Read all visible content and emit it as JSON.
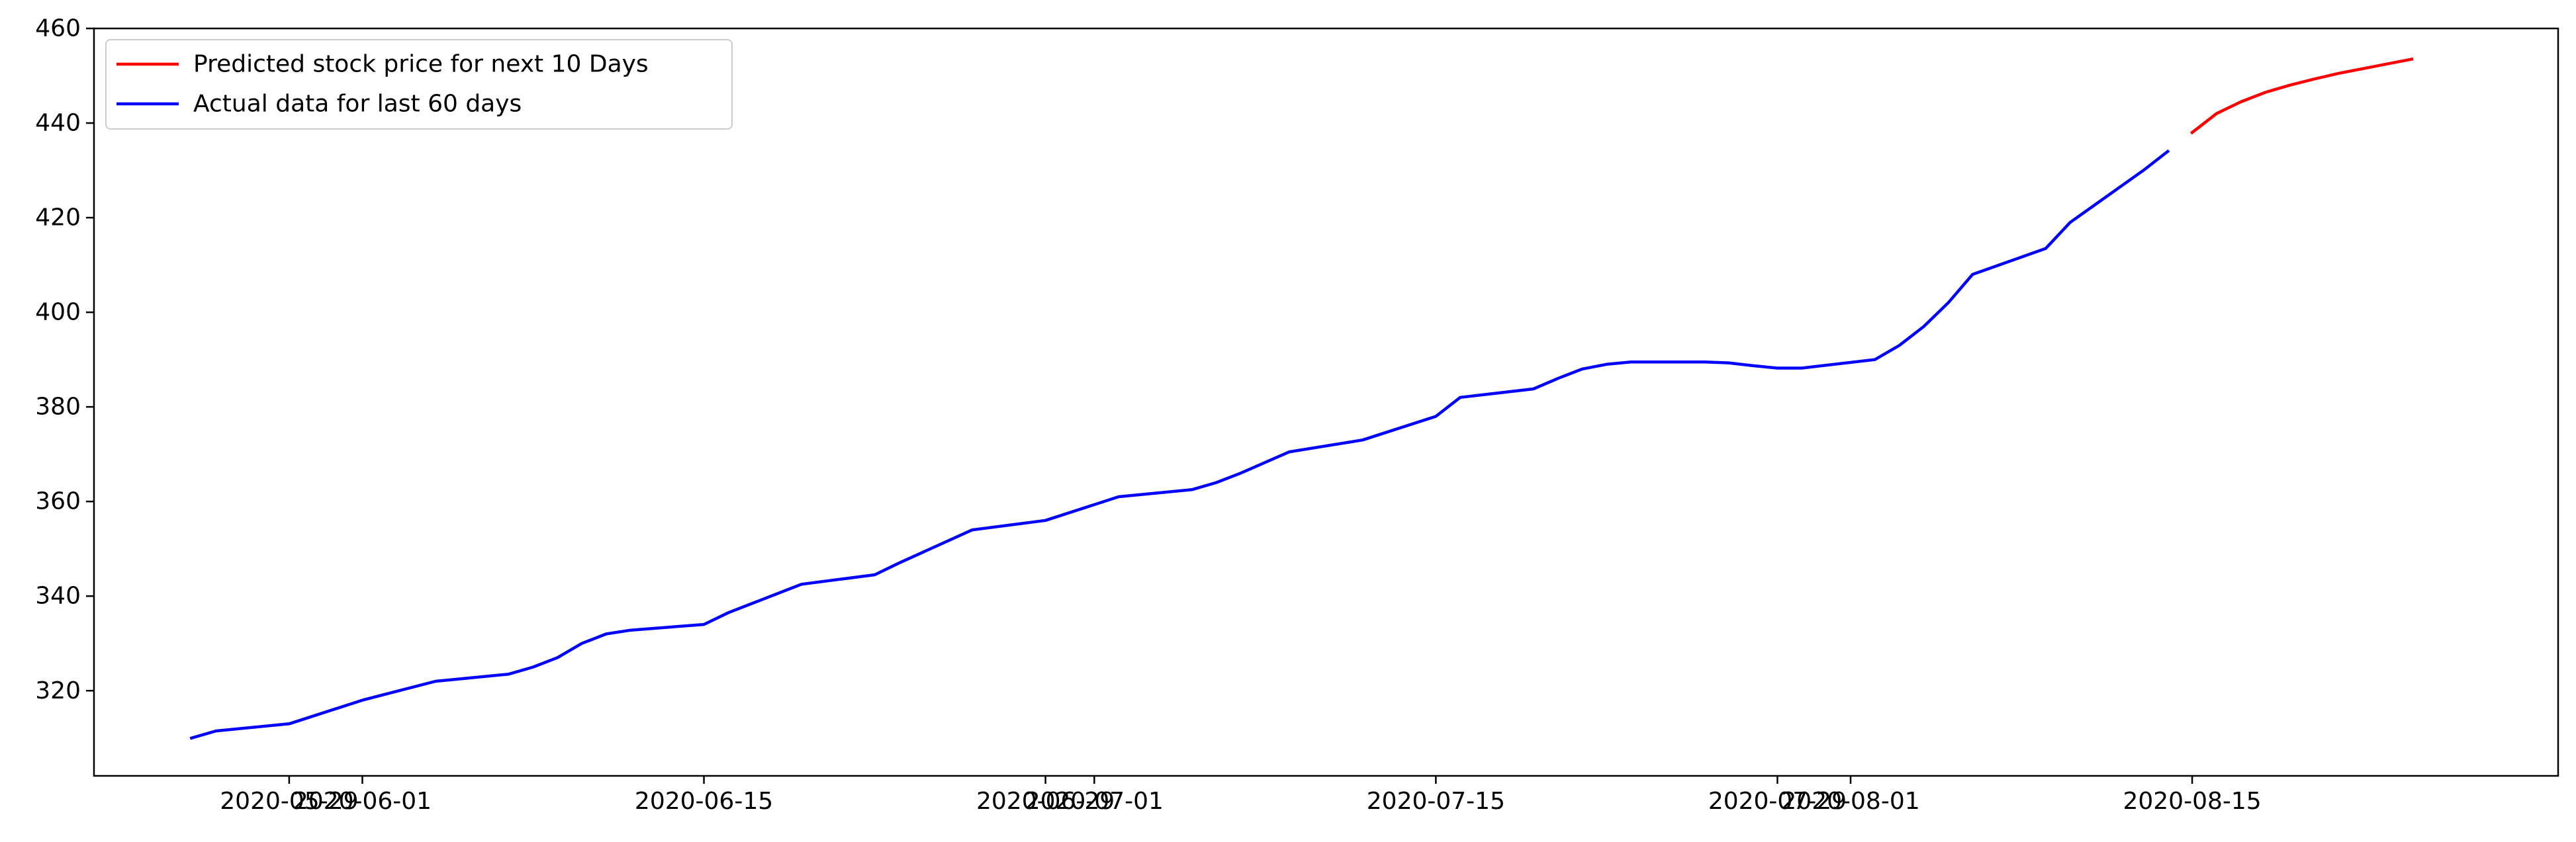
{
  "chart_data": {
    "type": "line",
    "title": "",
    "xlabel": "",
    "ylabel": "",
    "ylim": [
      302,
      460
    ],
    "xlim": [
      "2020-05-21",
      "2020-08-30"
    ],
    "yticks": [
      320,
      340,
      360,
      380,
      400,
      420,
      440,
      460
    ],
    "xticks": [
      {
        "date": "2020-05-29",
        "label": "2020-05-29"
      },
      {
        "date": "2020-06-01",
        "label": "2020-06-01"
      },
      {
        "date": "2020-06-15",
        "label": "2020-06-15"
      },
      {
        "date": "2020-06-29",
        "label": "2020-06-29"
      },
      {
        "date": "2020-07-01",
        "label": "2020-07-01"
      },
      {
        "date": "2020-07-15",
        "label": "2020-07-15"
      },
      {
        "date": "2020-07-29",
        "label": "2020-07-29"
      },
      {
        "date": "2020-08-01",
        "label": "2020-08-01"
      },
      {
        "date": "2020-08-15",
        "label": "2020-08-15"
      }
    ],
    "grid": false,
    "legend_position": "top-left",
    "series": [
      {
        "name": "Predicted stock price for next 10 Days",
        "color": "#ff0000",
        "x": [
          "2020-08-15",
          "2020-08-16",
          "2020-08-17",
          "2020-08-18",
          "2020-08-19",
          "2020-08-20",
          "2020-08-21",
          "2020-08-22",
          "2020-08-23",
          "2020-08-24"
        ],
        "y": [
          438,
          442,
          444.5,
          446.5,
          448,
          449.3,
          450.5,
          451.5,
          452.5,
          453.5
        ]
      },
      {
        "name": "Actual data for last 60 days",
        "color": "#0000ff",
        "x": [
          "2020-05-25",
          "2020-05-26",
          "2020-05-29",
          "2020-06-01",
          "2020-06-04",
          "2020-06-07",
          "2020-06-08",
          "2020-06-09",
          "2020-06-10",
          "2020-06-11",
          "2020-06-12",
          "2020-06-15",
          "2020-06-16",
          "2020-06-19",
          "2020-06-22",
          "2020-06-23",
          "2020-06-26",
          "2020-06-29",
          "2020-07-02",
          "2020-07-05",
          "2020-07-06",
          "2020-07-07",
          "2020-07-09",
          "2020-07-12",
          "2020-07-15",
          "2020-07-16",
          "2020-07-19",
          "2020-07-20",
          "2020-07-21",
          "2020-07-22",
          "2020-07-23",
          "2020-07-26",
          "2020-07-27",
          "2020-07-28",
          "2020-07-29",
          "2020-07-30",
          "2020-08-02",
          "2020-08-03",
          "2020-08-04",
          "2020-08-05",
          "2020-08-06",
          "2020-08-09",
          "2020-08-10",
          "2020-08-13",
          "2020-08-14"
        ],
        "y": [
          310,
          311.5,
          313,
          318,
          322,
          323.5,
          325,
          327,
          330,
          332,
          332.8,
          334,
          336.5,
          342.5,
          344.5,
          347,
          354,
          356,
          361,
          362.5,
          364,
          366,
          370.5,
          373,
          378,
          382,
          383.8,
          386,
          388,
          389,
          389.5,
          389.5,
          389.3,
          388.7,
          388.2,
          388.2,
          390,
          393,
          397,
          402,
          408,
          413.5,
          419,
          430,
          434
        ]
      }
    ]
  }
}
